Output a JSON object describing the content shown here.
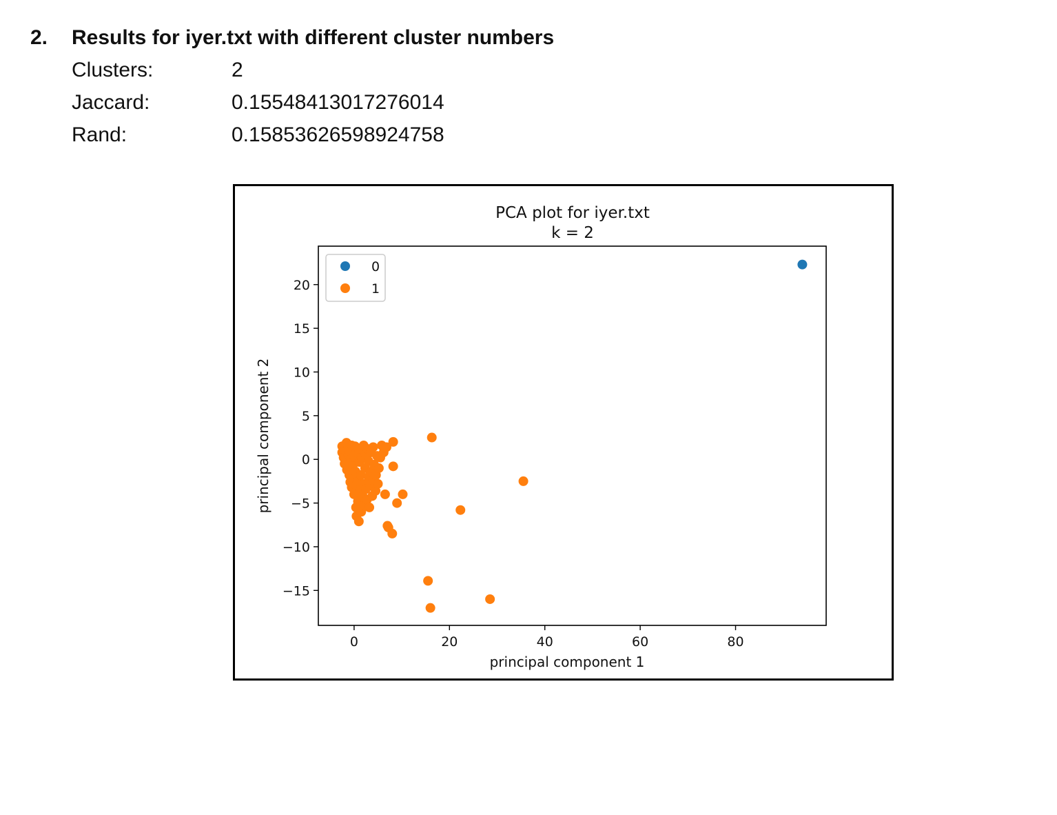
{
  "section": {
    "number": "2.",
    "title": "Results for iyer.txt with different cluster numbers"
  },
  "results": [
    {
      "label": "Clusters:",
      "value": "2"
    },
    {
      "label": "Jaccard:",
      "value": "0.15548413017276014"
    },
    {
      "label": "Rand:",
      "value": "0.15853626598924758"
    }
  ],
  "chart_data": {
    "type": "scatter",
    "title": "PCA plot for iyer.txt",
    "subtitle": "k = 2",
    "xlabel": "principal component 1",
    "ylabel": "principal component 2",
    "xlim": [
      -7.5,
      99
    ],
    "ylim": [
      -19,
      24.4
    ],
    "xticks": [
      0,
      20,
      40,
      60,
      80
    ],
    "yticks": [
      20,
      15,
      10,
      5,
      0,
      -5,
      -10,
      -15
    ],
    "ytick_labels": [
      "20",
      "15",
      "10",
      "5",
      "0",
      "−5",
      "−10",
      "−15"
    ],
    "legend_position": "top-left",
    "series": [
      {
        "name": "0",
        "color": "#1f77b4",
        "points": [
          [
            94,
            22.3
          ]
        ]
      },
      {
        "name": "1",
        "color": "#ff7f0e",
        "points": [
          [
            -2.5,
            1.5
          ],
          [
            -2.5,
            0.8
          ],
          [
            -2.2,
            0.2
          ],
          [
            -2,
            -0.5
          ],
          [
            -1.6,
            1.9
          ],
          [
            -1.5,
            -1.2
          ],
          [
            -1.2,
            0.5
          ],
          [
            -1,
            -1.8
          ],
          [
            -1,
            1
          ],
          [
            -0.8,
            -2.6
          ],
          [
            -0.7,
            0
          ],
          [
            -0.5,
            -3.2
          ],
          [
            -0.5,
            1.6
          ],
          [
            -0.3,
            -0.8
          ],
          [
            0,
            -4
          ],
          [
            0,
            0.4
          ],
          [
            0,
            -2
          ],
          [
            0.2,
            1.5
          ],
          [
            0.3,
            -1.4
          ],
          [
            0.4,
            -5.5
          ],
          [
            0.4,
            -3
          ],
          [
            0.5,
            0.8
          ],
          [
            0.5,
            -6.5
          ],
          [
            0.8,
            -4.8
          ],
          [
            0.8,
            -2.5
          ],
          [
            1,
            -7.1
          ],
          [
            1,
            1.2
          ],
          [
            1.1,
            -0.3
          ],
          [
            1.2,
            -3.6
          ],
          [
            1.4,
            -1.8
          ],
          [
            1.5,
            -6
          ],
          [
            1.6,
            0.2
          ],
          [
            1.8,
            -4.2
          ],
          [
            2,
            1.6
          ],
          [
            2,
            -2.8
          ],
          [
            2.2,
            -5.2
          ],
          [
            2.3,
            -1
          ],
          [
            2.4,
            0.6
          ],
          [
            2.5,
            -3.4
          ],
          [
            2.7,
            -4.6
          ],
          [
            2.8,
            1.2
          ],
          [
            3,
            -2
          ],
          [
            3,
            -0.2
          ],
          [
            3.2,
            -5.5
          ],
          [
            3.4,
            -3
          ],
          [
            3.5,
            0.8
          ],
          [
            3.6,
            -1.4
          ],
          [
            3.8,
            -4.2
          ],
          [
            4,
            -2.4
          ],
          [
            4,
            1.4
          ],
          [
            4.2,
            -0.6
          ],
          [
            4.5,
            -3.6
          ],
          [
            4.6,
            -1.8
          ],
          [
            4.8,
            0.4
          ],
          [
            5,
            -2.8
          ],
          [
            5.2,
            -1
          ],
          [
            5.5,
            0.2
          ],
          [
            5.8,
            1.6
          ],
          [
            6.2,
            0.8
          ],
          [
            6.5,
            -4
          ],
          [
            6.8,
            1.4
          ],
          [
            7,
            -7.6
          ],
          [
            7.2,
            -7.8
          ],
          [
            8.2,
            2
          ],
          [
            8.2,
            -0.8
          ],
          [
            8,
            -8.5
          ],
          [
            9,
            -5
          ],
          [
            10.2,
            -4
          ],
          [
            16.3,
            2.5
          ],
          [
            22.3,
            -5.8
          ],
          [
            35.5,
            -2.5
          ],
          [
            15.5,
            -13.9
          ],
          [
            16,
            -17
          ],
          [
            28.5,
            -16
          ]
        ]
      }
    ]
  }
}
